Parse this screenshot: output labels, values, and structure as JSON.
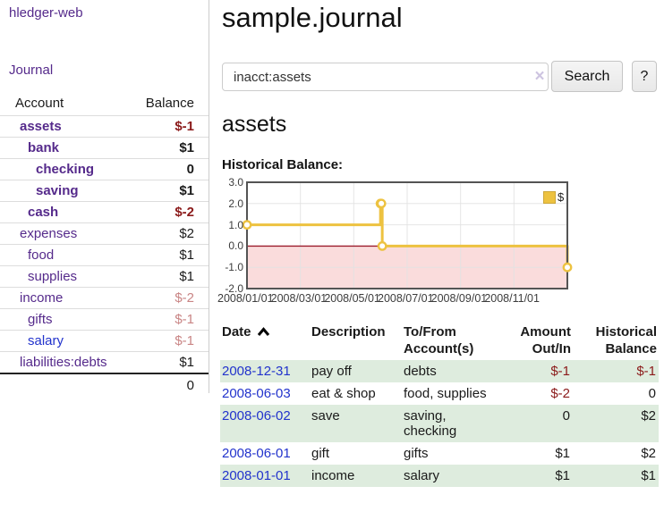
{
  "sidebar": {
    "app_title": "hledger-web",
    "journal_link": "Journal",
    "accounts_header": {
      "account": "Account",
      "balance": "Balance"
    },
    "accounts": [
      {
        "name": "assets",
        "balance": "$-1",
        "level": 1,
        "bold": true,
        "neg": "strong",
        "color": "purple"
      },
      {
        "name": "bank",
        "balance": "$1",
        "level": 2,
        "bold": true,
        "neg": null,
        "color": "purple"
      },
      {
        "name": "checking",
        "balance": "0",
        "level": 3,
        "bold": true,
        "neg": null,
        "color": "purple"
      },
      {
        "name": "saving",
        "balance": "$1",
        "level": 3,
        "bold": true,
        "neg": null,
        "color": "purple"
      },
      {
        "name": "cash",
        "balance": "$-2",
        "level": 2,
        "bold": true,
        "neg": "strong",
        "color": "purple"
      },
      {
        "name": "expenses",
        "balance": "$2",
        "level": 1,
        "bold": false,
        "neg": null,
        "color": "purple"
      },
      {
        "name": "food",
        "balance": "$1",
        "level": 2,
        "bold": false,
        "neg": null,
        "color": "purple"
      },
      {
        "name": "supplies",
        "balance": "$1",
        "level": 2,
        "bold": false,
        "neg": null,
        "color": "purple"
      },
      {
        "name": "income",
        "balance": "$-2",
        "level": 1,
        "bold": false,
        "neg": "light",
        "color": "purple"
      },
      {
        "name": "gifts",
        "balance": "$-1",
        "level": 2,
        "bold": false,
        "neg": "light",
        "color": "purple"
      },
      {
        "name": "salary",
        "balance": "$-1",
        "level": 2,
        "bold": false,
        "neg": "light",
        "color": "blue"
      },
      {
        "name": "liabilities:debts",
        "balance": "$1",
        "level": 1,
        "bold": false,
        "neg": null,
        "color": "purple"
      }
    ],
    "total": "0"
  },
  "header": {
    "title": "sample.journal"
  },
  "search": {
    "query": "inacct:assets",
    "button_label": "Search",
    "help_label": "?",
    "clear_icon": "×"
  },
  "main": {
    "account_heading": "assets",
    "chart_title": "Historical Balance:"
  },
  "chart_data": {
    "type": "line",
    "title": "Historical Balance",
    "step": true,
    "series": [
      {
        "name": "$",
        "points": [
          {
            "date": "2008-01-01",
            "value": 1
          },
          {
            "date": "2008-06-01",
            "value": 2
          },
          {
            "date": "2008-06-02",
            "value": 2
          },
          {
            "date": "2008-06-03",
            "value": 0
          },
          {
            "date": "2008-12-31",
            "value": -1
          }
        ]
      }
    ],
    "x_ticks": [
      "2008/01/01",
      "2008/03/01",
      "2008/05/01",
      "2008/07/01",
      "2008/09/01",
      "2008/11/01"
    ],
    "y_ticks": [
      "3.0",
      "2.0",
      "1.0",
      "0.0",
      "-1.0",
      "-2.0"
    ],
    "ylim": [
      -2,
      3
    ],
    "x_range_months": 12,
    "grid": true,
    "legend": {
      "label": "$",
      "position": "top-right"
    },
    "colors": {
      "line": "#edc240",
      "marker_fill": "#ffffff",
      "negative_region": "#fadcdc",
      "zero_line": "#9b1c2c",
      "grid": "#e2e2e2",
      "border": "#545454",
      "swatch": "#edc240"
    }
  },
  "register": {
    "headers": [
      {
        "l1": "Date",
        "l2": "",
        "sorted": true
      },
      {
        "l1": "Description",
        "l2": ""
      },
      {
        "l1": "To/From",
        "l2": "Account(s)"
      },
      {
        "l1": "Amount",
        "l2": "Out/In",
        "align": "right"
      },
      {
        "l1": "Historical",
        "l2": "Balance",
        "align": "right"
      }
    ],
    "rows": [
      {
        "date": "2008-12-31",
        "description": "pay off",
        "accounts": "debts",
        "amount": "$-1",
        "balance": "$-1"
      },
      {
        "date": "2008-06-03",
        "description": "eat & shop",
        "accounts": "food, supplies",
        "amount": "$-2",
        "balance": "0"
      },
      {
        "date": "2008-06-02",
        "description": "save",
        "accounts": "saving, checking",
        "amount": "0",
        "balance": "$2"
      },
      {
        "date": "2008-06-01",
        "description": "gift",
        "accounts": "gifts",
        "amount": "$1",
        "balance": "$2"
      },
      {
        "date": "2008-01-01",
        "description": "income",
        "accounts": "salary",
        "amount": "$1",
        "balance": "$1"
      }
    ]
  },
  "colors": {
    "link_purple": "#552a8b",
    "link_blue": "#2233cc",
    "negative_strong": "#8b1a1a",
    "negative_light": "#c98585",
    "row_stripe_green": "#deecde"
  }
}
